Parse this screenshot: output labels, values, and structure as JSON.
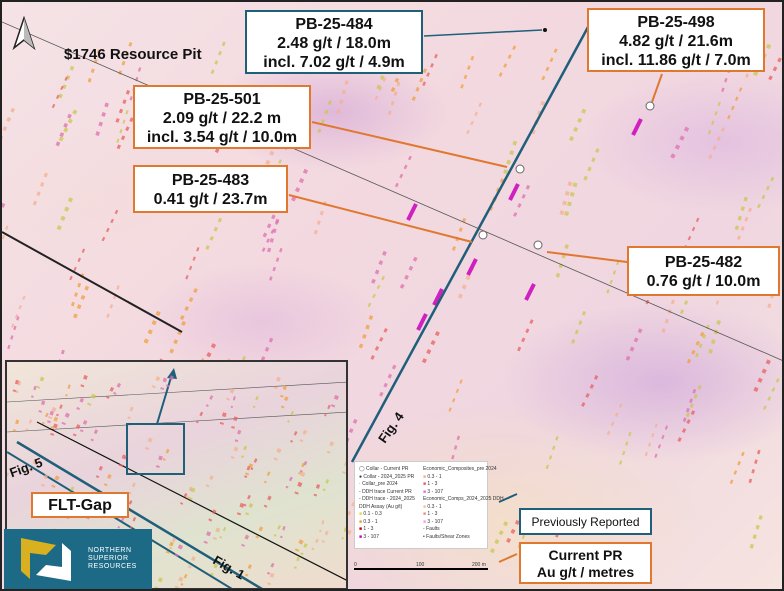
{
  "map": {
    "north_arrow": "north-arrow-icon",
    "pit_label": "$1746 Resource Pit",
    "fig_labels": [
      "Fig. 4",
      "Fig. 5",
      "Fig. 1"
    ],
    "inset_label": "FLT-Gap",
    "colors": {
      "current_pr": "#e0782f",
      "previously_reported": "#1f5f7a",
      "high_grade": "#d020c0",
      "mid_grade": "#e04040",
      "low_grade": "#f0a040"
    }
  },
  "callouts": [
    {
      "hole": "PB-25-484",
      "line1": "2.48 g/t  / 18.0m",
      "line2": "incl. 7.02 g/t / 4.9m",
      "style": "previously-reported"
    },
    {
      "hole": "PB-25-498",
      "line1": "4.82 g/t / 21.6m",
      "line2": "incl. 11.86 g/t / 7.0m",
      "style": "current"
    },
    {
      "hole": "PB-25-501",
      "line1": "2.09 g/t / 22.2 m",
      "line2": "incl. 3.54 g/t / 10.0m",
      "style": "current"
    },
    {
      "hole": "PB-25-483",
      "line1": "0.41 g/t / 23.7m",
      "line2": "",
      "style": "current"
    },
    {
      "hole": "PB-25-482",
      "line1": "0.76 g/t / 10.0m",
      "line2": "",
      "style": "current"
    }
  ],
  "key": {
    "previously_reported": "Previously Reported",
    "current_title": "Current PR",
    "current_sub": "Au g/t / metres"
  },
  "legend": {
    "left": [
      "Collar - Current PR",
      "Collar - 2024_2025 PR",
      "Collar_pre 2024",
      "DDH trace Current PR",
      "DDH trace - 2024_2025"
    ],
    "assay_title": "DDH Assay (Au g/t)",
    "assay": [
      "0.1 - 0.3",
      "0.3 - 1",
      "1 - 3",
      "3 - 107"
    ],
    "econ_pre_title": "Economic_Composites_pre 2024",
    "econ_pre": [
      "0.3 - 1",
      "1 - 3",
      "3 - 107"
    ],
    "econ_new_title": "Economic_Comps_2024_2025 DDH",
    "econ_new": [
      "0.3 - 1",
      "1 - 3",
      "3 - 107"
    ],
    "faults": [
      "Faults",
      "Faults/Shear Zones"
    ],
    "scale": [
      "0",
      "100",
      "200 m"
    ]
  },
  "logo": {
    "text": [
      "NORTHERN",
      "SUPERIOR",
      "RESOURCES"
    ]
  }
}
